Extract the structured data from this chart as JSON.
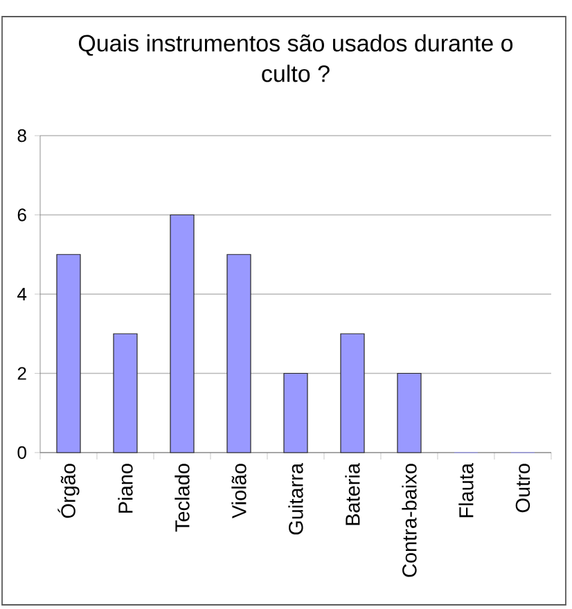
{
  "chart_data": {
    "type": "bar",
    "title": "Quais instrumentos são usados durante o culto ?",
    "categories": [
      "Órgão",
      "Piano",
      "Teclado",
      "Violão",
      "Guitarra",
      "Bateria",
      "Contra-baixo",
      "Flauta",
      "Outro"
    ],
    "values": [
      5,
      3,
      6,
      5,
      2,
      3,
      2,
      0,
      0
    ],
    "color": "#9999ff",
    "ylim": [
      0,
      8
    ],
    "yticks": [
      0,
      2,
      4,
      6,
      8
    ],
    "grid": "y"
  }
}
